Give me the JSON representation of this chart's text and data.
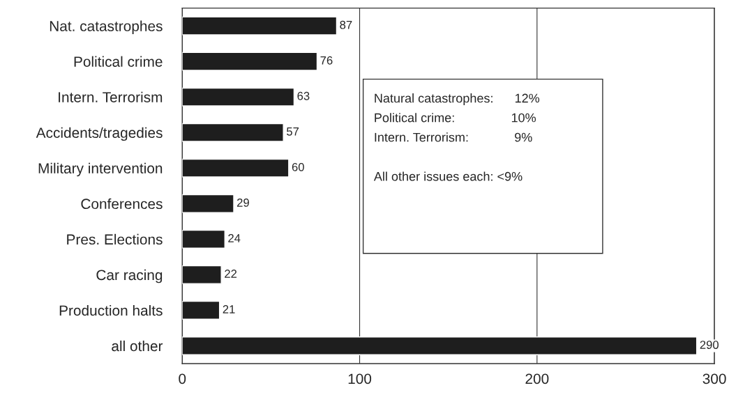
{
  "chart_data": {
    "type": "bar",
    "orientation": "horizontal",
    "categories": [
      "Nat. catastrophes",
      "Political crime",
      "Intern. Terrorism",
      "Accidents/tragedies",
      "Military intervention",
      "Conferences",
      "Pres. Elections",
      "Car racing",
      "Production halts",
      "all other"
    ],
    "values": [
      87,
      76,
      63,
      57,
      60,
      29,
      24,
      22,
      21,
      290
    ],
    "color": "#1e1e1e",
    "xlim": [
      0,
      300
    ],
    "xticks": [
      0,
      100,
      200,
      300
    ],
    "grid": "x",
    "data_labels": true,
    "annotations": [
      "Natural catastrophes:      12%",
      "Political crime:                10%",
      "Intern. Terrorism:             9%",
      "All other issues each: <9%"
    ]
  }
}
